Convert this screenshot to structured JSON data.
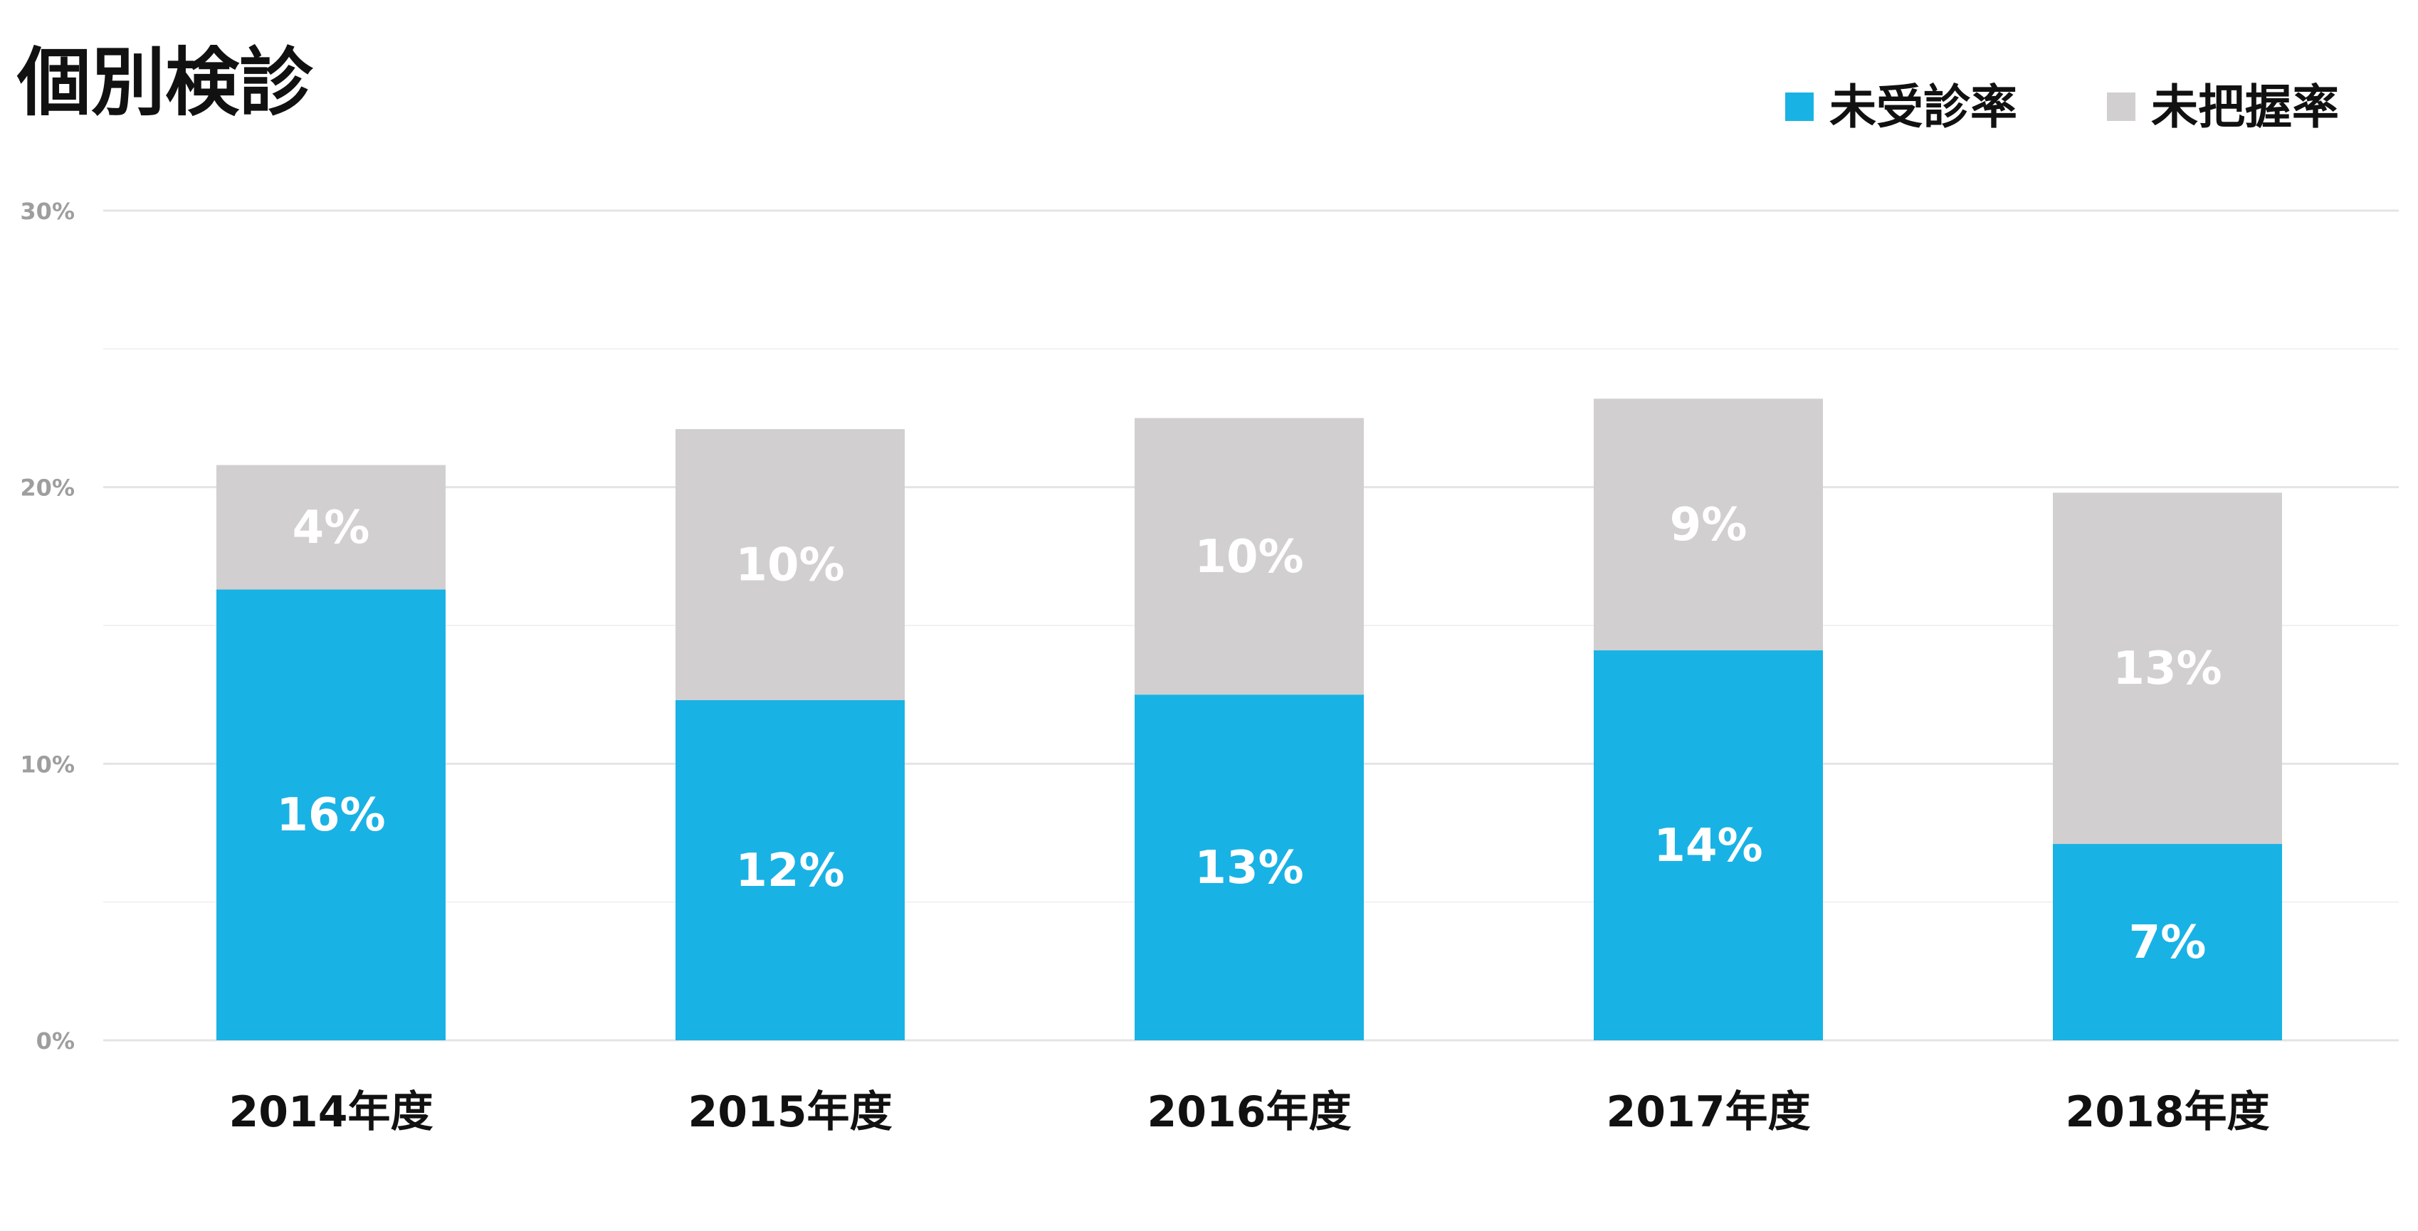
{
  "chart_data": {
    "type": "bar",
    "stacked": true,
    "title": "個別検診",
    "xlabel": "",
    "ylabel": "",
    "categories": [
      "2014年度",
      "2015年度",
      "2016年度",
      "2017年度",
      "2018年度"
    ],
    "series": [
      {
        "name": "未受診率",
        "color": "#19b2e5",
        "values": [
          16.3,
          12.3,
          12.5,
          14.1,
          7.1
        ],
        "labels": [
          "16%",
          "12%",
          "13%",
          "14%",
          "7%"
        ]
      },
      {
        "name": "未把握率",
        "color": "#d1cfd0",
        "values": [
          4.5,
          9.8,
          10.0,
          9.1,
          12.7
        ],
        "labels": [
          "4%",
          "10%",
          "10%",
          "9%",
          "13%"
        ]
      }
    ],
    "ylim": [
      0,
      30
    ],
    "yticks": [
      0,
      10,
      20,
      30
    ],
    "ytick_labels": [
      "0%",
      "10%",
      "20%",
      "30%"
    ],
    "grid": true,
    "legend_position": "top-right"
  }
}
